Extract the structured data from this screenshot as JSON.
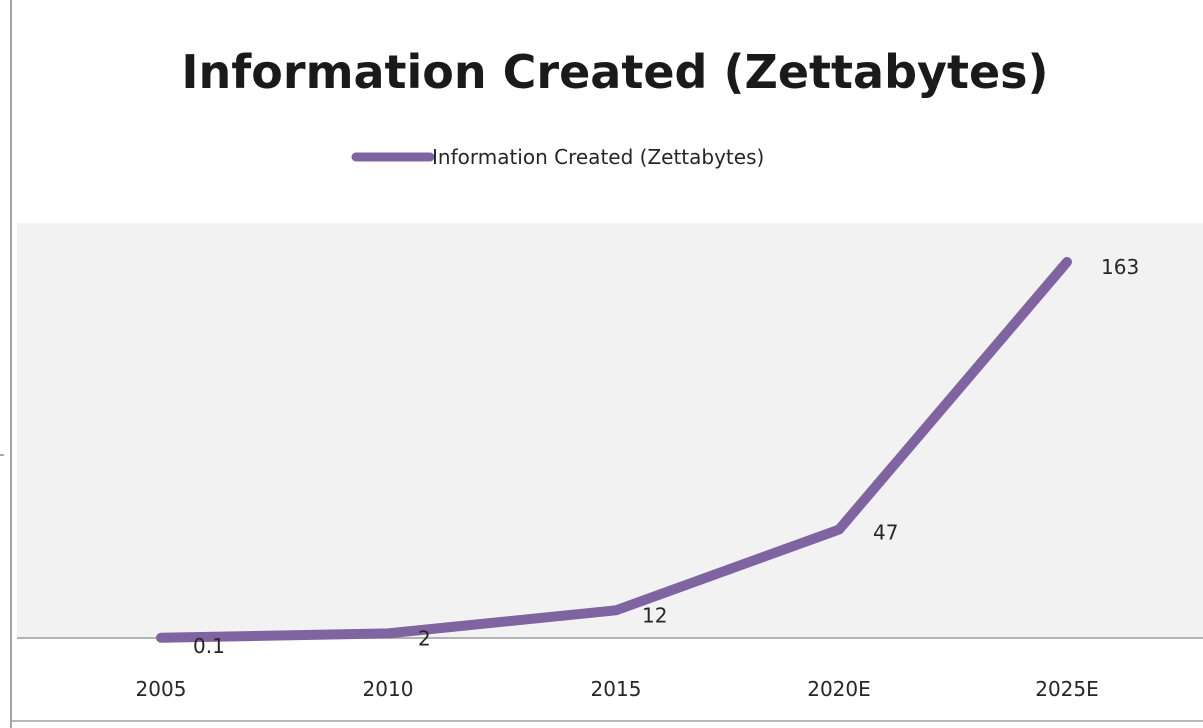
{
  "chart_data": {
    "type": "line",
    "title": "Information Created (Zettabytes)",
    "xlabel": "",
    "ylabel": "",
    "categories": [
      "2005",
      "2010",
      "2015",
      "2020E",
      "2025E"
    ],
    "series": [
      {
        "name": "Information Created (Zettabytes)",
        "values": [
          0.1,
          2,
          12,
          47,
          163
        ],
        "data_labels": [
          "0.1",
          "2",
          "12",
          "47",
          "163"
        ],
        "color": "#8064a2"
      }
    ],
    "ylim": [
      0,
      180
    ],
    "grid": false,
    "legend": "top",
    "plot_background": "#f2f2f2"
  }
}
